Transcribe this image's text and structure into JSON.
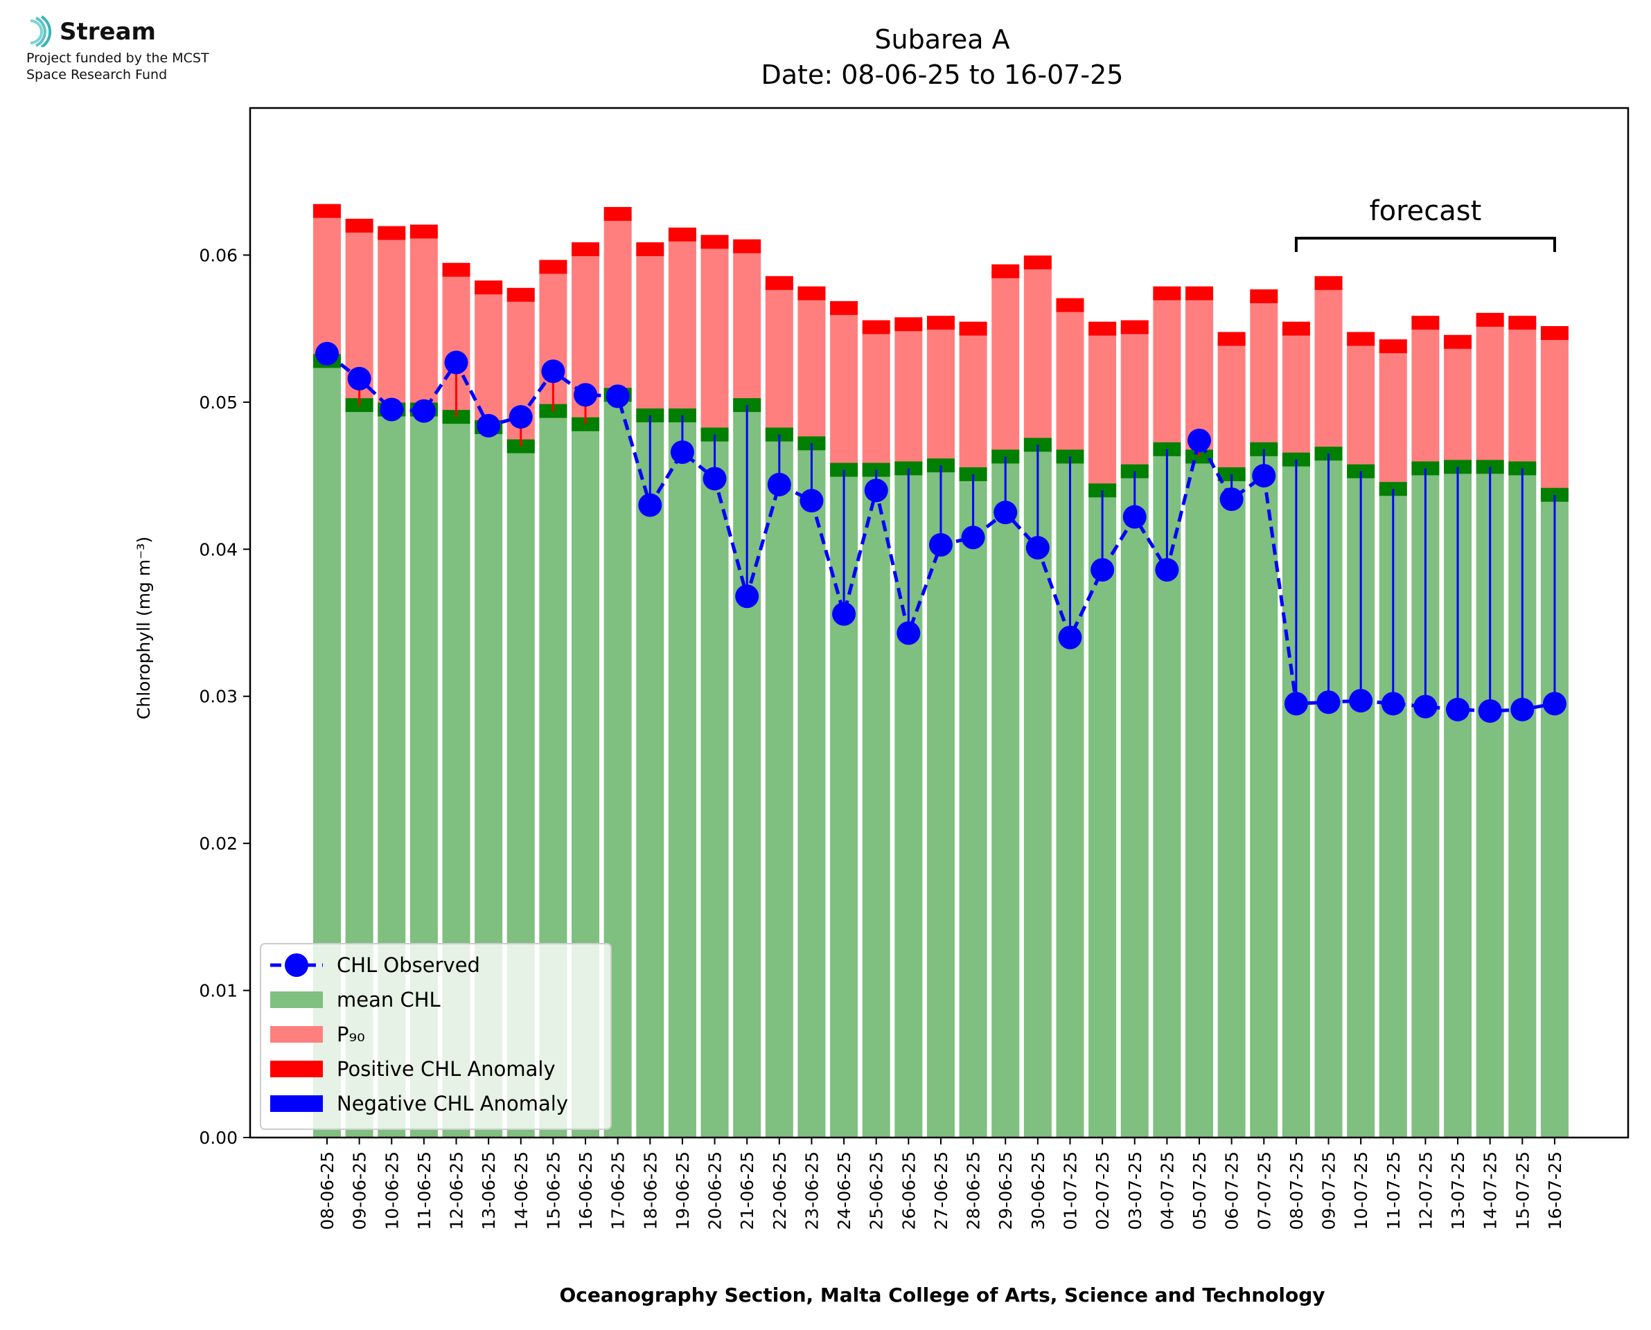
{
  "logo": {
    "brand": "Stream",
    "funding_line1": "Project funded by the MCST",
    "funding_line2": "Space Research Fund"
  },
  "colors": {
    "mean": "#7fbf7f",
    "p90": "#ff7f7f",
    "pos_anomaly": "#ff0000",
    "neg_anomaly": "#0000ff",
    "band": "#007f00",
    "observed": "#0000ff"
  },
  "chart_data": {
    "type": "bar",
    "title": "Subarea A",
    "subtitle": "Date: 08-06-25 to 16-07-25",
    "xlabel": "Oceanography Section, Malta College of Arts, Science and Technology",
    "ylabel": "Chlorophyll (mg m⁻³)",
    "ylim": [
      0,
      0.07
    ],
    "yticks": [
      0.0,
      0.01,
      0.02,
      0.03,
      0.04,
      0.05,
      0.06
    ],
    "ytick_labels": [
      "0.00",
      "0.01",
      "0.02",
      "0.03",
      "0.04",
      "0.05",
      "0.06"
    ],
    "grid": false,
    "legend_position": "lower-left",
    "categories": [
      "08-06-25",
      "09-06-25",
      "10-06-25",
      "11-06-25",
      "12-06-25",
      "13-06-25",
      "14-06-25",
      "15-06-25",
      "16-06-25",
      "17-06-25",
      "18-06-25",
      "19-06-25",
      "20-06-25",
      "21-06-25",
      "22-06-25",
      "23-06-25",
      "24-06-25",
      "25-06-25",
      "26-06-25",
      "27-06-25",
      "28-06-25",
      "29-06-25",
      "30-06-25",
      "01-07-25",
      "02-07-25",
      "03-07-25",
      "04-07-25",
      "05-07-25",
      "06-07-25",
      "07-07-25",
      "08-07-25",
      "09-07-25",
      "10-07-25",
      "11-07-25",
      "12-07-25",
      "13-07-25",
      "14-07-25",
      "15-07-25",
      "16-07-25"
    ],
    "series": [
      {
        "name": "mean CHL",
        "type": "bar",
        "values": [
          0.0528,
          0.0498,
          0.0495,
          0.0495,
          0.049,
          0.0483,
          0.047,
          0.0494,
          0.0485,
          0.0505,
          0.0491,
          0.0491,
          0.0478,
          0.0498,
          0.0478,
          0.0472,
          0.0454,
          0.0454,
          0.0455,
          0.0457,
          0.0451,
          0.0463,
          0.0471,
          0.0463,
          0.044,
          0.0453,
          0.0468,
          0.0463,
          0.0451,
          0.0468,
          0.0461,
          0.0465,
          0.0453,
          0.0441,
          0.0455,
          0.0456,
          0.0456,
          0.0455,
          0.0437
        ]
      },
      {
        "name": "P₉₀",
        "type": "bar",
        "values": [
          0.063,
          0.062,
          0.0615,
          0.0616,
          0.059,
          0.0578,
          0.0573,
          0.0592,
          0.0604,
          0.0628,
          0.0604,
          0.0614,
          0.0609,
          0.0606,
          0.0581,
          0.0574,
          0.0564,
          0.0551,
          0.0553,
          0.0554,
          0.055,
          0.0589,
          0.0595,
          0.0566,
          0.055,
          0.0551,
          0.0574,
          0.0574,
          0.0543,
          0.0572,
          0.055,
          0.0581,
          0.0543,
          0.0538,
          0.0554,
          0.0541,
          0.0556,
          0.0554,
          0.0547
        ]
      },
      {
        "name": "CHL Observed",
        "type": "line",
        "values": [
          0.0533,
          0.0516,
          0.0495,
          0.0494,
          0.0527,
          0.0484,
          0.049,
          0.0521,
          0.0505,
          0.0504,
          0.043,
          0.0466,
          0.0448,
          0.0368,
          0.0444,
          0.0433,
          0.0356,
          0.044,
          0.0343,
          0.0403,
          0.0408,
          0.0425,
          0.0401,
          0.034,
          0.0386,
          0.0422,
          0.0386,
          0.0474,
          0.0434,
          0.045,
          0.0295,
          0.0296,
          0.0297,
          0.0295,
          0.0293,
          0.0291,
          0.029,
          0.0291,
          0.0295
        ]
      }
    ],
    "legend": [
      "CHL Observed",
      "mean CHL",
      "P₉₀",
      "Positive CHL Anomaly",
      "Negative CHL Anomaly"
    ],
    "annotation": {
      "text": "forecast",
      "from": "08-07-25",
      "to": "16-07-25"
    }
  }
}
